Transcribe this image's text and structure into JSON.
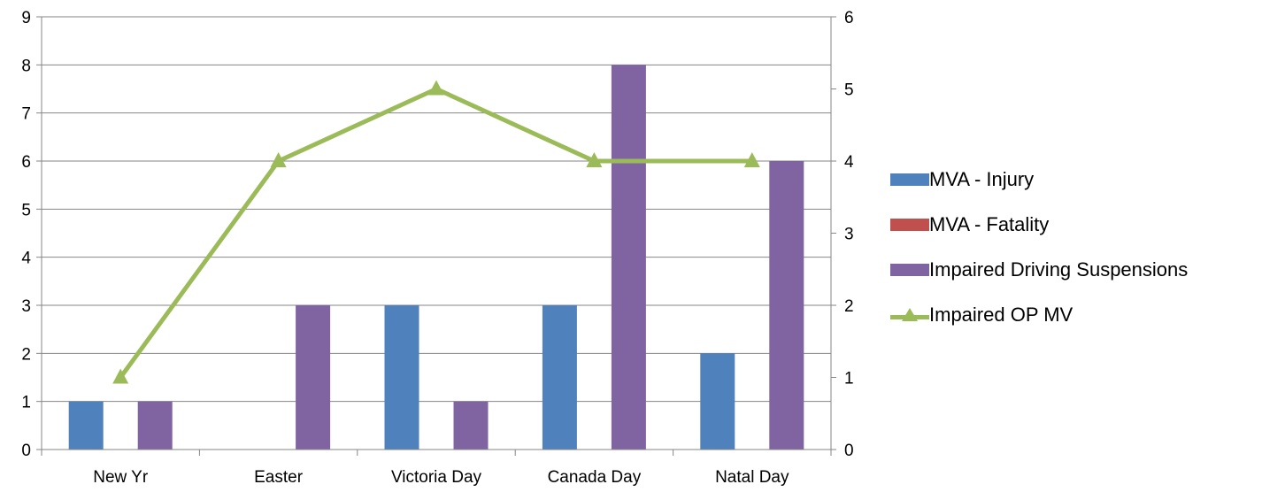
{
  "chart_data": {
    "type": "bar",
    "categories": [
      "New Yr",
      "Easter",
      "Victoria Day",
      "Canada Day",
      "Natal Day"
    ],
    "series": [
      {
        "name": "MVA - Injury",
        "kind": "bar",
        "axis": "left",
        "color": "#4F81BD",
        "values": [
          1,
          0,
          3,
          3,
          2
        ]
      },
      {
        "name": "MVA - Fatality",
        "kind": "bar",
        "axis": "left",
        "color": "#C0504D",
        "values": [
          0,
          0,
          0,
          0,
          0
        ]
      },
      {
        "name": "Impaired Driving Suspensions",
        "kind": "bar",
        "axis": "left",
        "color": "#8064A2",
        "values": [
          1,
          3,
          1,
          8,
          6
        ]
      },
      {
        "name": "Impaired OP MV",
        "kind": "line",
        "axis": "right",
        "color": "#9BBB59",
        "marker": "triangle",
        "values": [
          1,
          4,
          5,
          4,
          4
        ]
      }
    ],
    "y_left": {
      "ylim": [
        0,
        9
      ],
      "ticks": [
        "0",
        "1",
        "2",
        "3",
        "4",
        "5",
        "6",
        "7",
        "8",
        "9"
      ]
    },
    "y_right": {
      "ylim": [
        0,
        6
      ],
      "ticks": [
        "0",
        "1",
        "2",
        "3",
        "4",
        "5",
        "6"
      ]
    },
    "grid": true,
    "legend_position": "right",
    "title": "",
    "xlabel": "",
    "ylabel": ""
  }
}
